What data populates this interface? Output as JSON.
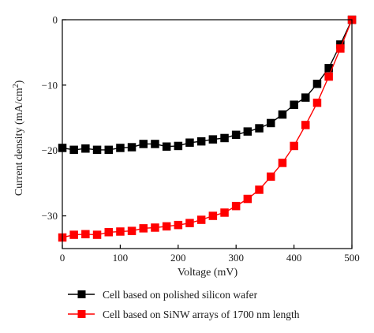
{
  "chart_data": {
    "type": "line",
    "xlabel": "Voltage (mV)",
    "ylabel_main": "Current density (mA/cm",
    "ylabel_sup": "2",
    "ylabel_close": ")",
    "xlim": [
      0,
      500
    ],
    "ylim": [
      -35,
      0
    ],
    "x_ticks": [
      0,
      100,
      200,
      300,
      400,
      500
    ],
    "y_ticks": [
      0,
      -10,
      -20,
      -30
    ],
    "x_tick_labels": [
      "0",
      "100",
      "200",
      "300",
      "400",
      "500"
    ],
    "y_tick_labels": [
      "0",
      "−10",
      "−20",
      "−30"
    ],
    "grid": false,
    "legend_position": "bottom",
    "series": [
      {
        "name": "Cell based on polished silicon wafer",
        "color": "#000000",
        "marker": "square",
        "x": [
          0,
          20,
          40,
          60,
          80,
          100,
          120,
          140,
          160,
          180,
          200,
          220,
          240,
          260,
          280,
          300,
          320,
          340,
          360,
          380,
          400,
          420,
          440,
          460,
          480,
          500
        ],
        "y": [
          -19.6,
          -19.9,
          -19.7,
          -19.9,
          -19.9,
          -19.6,
          -19.5,
          -19.0,
          -19.0,
          -19.4,
          -19.3,
          -18.8,
          -18.6,
          -18.3,
          -18.1,
          -17.6,
          -17.1,
          -16.6,
          -15.8,
          -14.5,
          -13.0,
          -11.9,
          -9.8,
          -7.4,
          -3.8,
          0.0
        ]
      },
      {
        "name": "Cell based on SiNW arrays of 1700 nm length",
        "color": "#ff0000",
        "marker": "square",
        "x": [
          0,
          20,
          40,
          60,
          80,
          100,
          120,
          140,
          160,
          180,
          200,
          220,
          240,
          260,
          280,
          300,
          320,
          340,
          360,
          380,
          400,
          420,
          440,
          460,
          480,
          500
        ],
        "y": [
          -33.3,
          -32.9,
          -32.8,
          -32.9,
          -32.5,
          -32.4,
          -32.3,
          -31.9,
          -31.8,
          -31.6,
          -31.4,
          -31.1,
          -30.6,
          -30.0,
          -29.5,
          -28.5,
          -27.4,
          -26.0,
          -24.0,
          -21.9,
          -19.3,
          -16.1,
          -12.7,
          -8.7,
          -4.4,
          0.0
        ]
      }
    ]
  }
}
